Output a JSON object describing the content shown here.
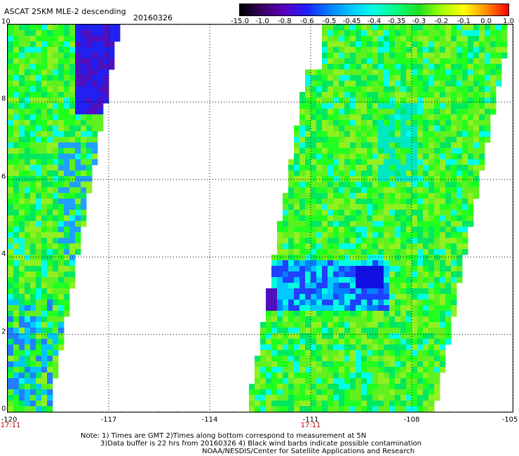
{
  "title": "ASCAT 25KM MLE-2 descending",
  "date": "20160326",
  "colorbar": {
    "labels": [
      "-15.0",
      "-1.0",
      "-0.8",
      "-0.6",
      "-0.5",
      "-0.45",
      "-0.4",
      "-0.35",
      "-0.3",
      "-0.2",
      "-0.1",
      "0.0",
      "1.0"
    ],
    "colors": [
      "#000000",
      "#3a0060",
      "#5a00c0",
      "#2020ff",
      "#0080ff",
      "#00c8ff",
      "#00ffe0",
      "#00ff80",
      "#20e020",
      "#a0ff00",
      "#ffff00",
      "#ff9000",
      "#ff0000"
    ]
  },
  "map": {
    "lon_labels": [
      "-120",
      "-117",
      "-114",
      "-111",
      "-108",
      "-105"
    ],
    "lat_labels": [
      "0",
      "2",
      "4",
      "6",
      "8",
      "10"
    ],
    "lon_range": [
      -120,
      -105
    ],
    "lat_range": [
      0,
      10
    ],
    "grid": "dotted",
    "time_labels": [
      {
        "text": "17:11",
        "lon": -120
      },
      {
        "text": "17:11",
        "lon": -111
      }
    ],
    "dominant_values": "-0.45 to -0.3 (green/cyan), patches near -0.8 to -0.6 (blue/purple)"
  },
  "notes": [
    "Note: 1) Times are GMT 2)Times along bottom correspond to measurement at 5N",
    "3)Data buffer is 22 hrs from 20160326 4) Black wind barbs indicate possible contamination",
    "NOAA/NESDIS/Center for Satellite Applications and Research"
  ]
}
